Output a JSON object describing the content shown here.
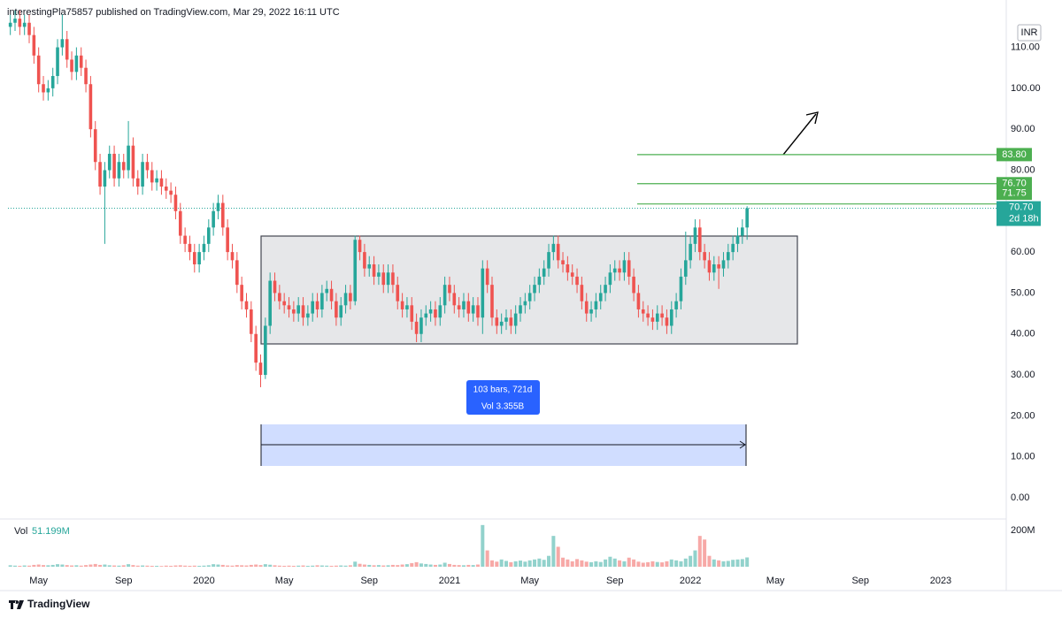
{
  "header": {
    "text": "interestingPla75857 published on TradingView.com, Mar 29, 2022 16:11 UTC"
  },
  "footer": {
    "brand": "TradingView"
  },
  "chart_data": {
    "type": "candlestick",
    "currency": "INR",
    "categories": [
      null,
      null,
      null,
      null,
      null,
      null,
      "May",
      null,
      null,
      null,
      null,
      null,
      null,
      null,
      null,
      null,
      null,
      null,
      null,
      null,
      null,
      null,
      null,
      null,
      "Sep",
      null,
      null,
      null,
      null,
      null,
      null,
      null,
      null,
      null,
      null,
      null,
      null,
      null,
      null,
      null,
      null,
      "2020",
      null,
      null,
      null,
      null,
      null,
      null,
      null,
      null,
      null,
      null,
      null,
      null,
      null,
      null,
      null,
      null,
      "May",
      null,
      null,
      null,
      null,
      null,
      null,
      null,
      null,
      null,
      null,
      null,
      null,
      null,
      null,
      null,
      null,
      null,
      "Sep",
      null,
      null,
      null,
      null,
      null,
      null,
      null,
      null,
      null,
      null,
      null,
      null,
      null,
      null,
      null,
      null,
      "2021",
      null,
      null,
      null,
      null,
      null,
      null,
      null,
      null,
      null,
      null,
      null,
      null,
      null,
      null,
      null,
      null,
      "May",
      null,
      null,
      null,
      null,
      null,
      null,
      null,
      null,
      null,
      null,
      null,
      null,
      null,
      null,
      null,
      null,
      null,
      "Sep",
      null,
      null,
      null,
      null,
      null,
      null,
      null,
      null,
      null,
      null,
      null,
      null,
      null,
      null,
      null,
      "2022",
      null,
      null,
      null,
      null,
      null,
      null,
      null,
      null,
      null,
      null,
      null,
      null,
      null,
      null,
      null,
      null,
      null,
      "May",
      null,
      null,
      null,
      null,
      null,
      null,
      null,
      null,
      null,
      null,
      null,
      null,
      null,
      null,
      null,
      null,
      null,
      "Sep",
      null,
      null,
      null,
      null,
      null,
      null,
      null,
      null,
      null,
      null,
      null,
      null,
      null,
      null,
      null,
      null,
      "2023",
      null,
      null,
      null,
      null,
      null,
      null,
      null,
      null,
      null,
      null,
      null,
      null,
      null
    ],
    "open": [
      115,
      116,
      117,
      115,
      116,
      113,
      108,
      101,
      99,
      100,
      103,
      110,
      112,
      107,
      104,
      108,
      105,
      101,
      90,
      82,
      76,
      80,
      84,
      78,
      82,
      80,
      86,
      78,
      76,
      82,
      80,
      77,
      78,
      76,
      75,
      74,
      70,
      64,
      62,
      60,
      57,
      60,
      62,
      66,
      70,
      72,
      66,
      60,
      58,
      52,
      48,
      46,
      40,
      33,
      30,
      42,
      53,
      50,
      48,
      47,
      46,
      45,
      47,
      44,
      45,
      48,
      46,
      50,
      51,
      48,
      44,
      47,
      50,
      48,
      63,
      60,
      56,
      57,
      54,
      55,
      52,
      55,
      52,
      48,
      46,
      47,
      43,
      40,
      44,
      45,
      46,
      44,
      47,
      52,
      50,
      47,
      46,
      48,
      45,
      47,
      44,
      56,
      52,
      44,
      42,
      43,
      44,
      42,
      45,
      47,
      48,
      50,
      52,
      54,
      56,
      60,
      62,
      58,
      57,
      55,
      54,
      52,
      48,
      45,
      46,
      48,
      50,
      52,
      55,
      56,
      55,
      58,
      54,
      50,
      46,
      45,
      44,
      43,
      45,
      44,
      42,
      46,
      48,
      54,
      58,
      62,
      66,
      60,
      58,
      55,
      57,
      56,
      58,
      60,
      62,
      64,
      66,
      null,
      null,
      null,
      null,
      null,
      null,
      null,
      null,
      null,
      null,
      null,
      null,
      null,
      null,
      null,
      null,
      null,
      null,
      null,
      null,
      null,
      null,
      null,
      null,
      null,
      null,
      null,
      null,
      null,
      null,
      null,
      null,
      null,
      null,
      null,
      null,
      null,
      null,
      null,
      null,
      null,
      null,
      null,
      null,
      null,
      null,
      null,
      null,
      null,
      null,
      null,
      null,
      null,
      null
    ],
    "high": [
      118,
      119,
      119,
      118,
      118,
      115,
      110,
      103,
      102,
      105,
      112,
      118,
      114,
      109,
      110,
      110,
      107,
      103,
      92,
      84,
      82,
      86,
      86,
      84,
      84,
      92,
      88,
      80,
      84,
      84,
      82,
      80,
      80,
      78,
      77,
      76,
      72,
      66,
      64,
      62,
      62,
      64,
      68,
      72,
      74,
      74,
      68,
      62,
      60,
      54,
      50,
      48,
      42,
      35,
      44,
      55,
      55,
      52,
      50,
      49,
      48,
      49,
      49,
      47,
      50,
      50,
      52,
      53,
      53,
      50,
      49,
      52,
      52,
      64,
      64,
      62,
      59,
      59,
      57,
      57,
      57,
      57,
      54,
      50,
      49,
      49,
      45,
      46,
      47,
      48,
      48,
      49,
      54,
      54,
      52,
      49,
      50,
      50,
      49,
      49,
      58,
      58,
      54,
      46,
      45,
      46,
      46,
      47,
      49,
      50,
      52,
      54,
      56,
      58,
      62,
      64,
      64,
      60,
      59,
      57,
      56,
      54,
      50,
      48,
      50,
      52,
      54,
      57,
      58,
      58,
      60,
      60,
      56,
      52,
      48,
      47,
      46,
      47,
      47,
      46,
      48,
      50,
      56,
      65,
      64,
      68,
      68,
      62,
      60,
      59,
      59,
      60,
      62,
      64,
      66,
      68,
      71.2,
      null,
      null,
      null,
      null,
      null,
      null,
      null,
      null,
      null,
      null,
      null,
      null,
      null,
      null,
      null,
      null,
      null,
      null,
      null,
      null,
      null,
      null,
      null,
      null,
      null,
      null,
      null,
      null,
      null,
      null,
      null,
      null,
      null,
      null,
      null,
      null,
      null,
      null,
      null,
      null,
      null,
      null,
      null,
      null,
      null,
      null,
      null,
      null,
      null,
      null,
      null,
      null,
      null,
      null
    ],
    "low": [
      113,
      114,
      113,
      113,
      111,
      106,
      99,
      97,
      97,
      98,
      101,
      108,
      105,
      102,
      102,
      103,
      99,
      88,
      80,
      74,
      62,
      78,
      76,
      76,
      78,
      78,
      76,
      74,
      74,
      78,
      75,
      75,
      74,
      73,
      72,
      68,
      62,
      60,
      58,
      55,
      55,
      58,
      60,
      64,
      68,
      64,
      58,
      56,
      50,
      46,
      44,
      38,
      31,
      27,
      29,
      40,
      48,
      46,
      45,
      44,
      43,
      43,
      42,
      42,
      43,
      44,
      44,
      48,
      46,
      42,
      42,
      45,
      46,
      47,
      58,
      54,
      54,
      52,
      52,
      50,
      50,
      50,
      46,
      44,
      44,
      41,
      38,
      38,
      42,
      43,
      42,
      42,
      45,
      48,
      45,
      44,
      44,
      43,
      43,
      42,
      40,
      50,
      42,
      40,
      40,
      41,
      40,
      40,
      43,
      45,
      46,
      48,
      50,
      52,
      54,
      58,
      56,
      55,
      53,
      52,
      50,
      46,
      43,
      43,
      44,
      46,
      48,
      50,
      53,
      53,
      53,
      52,
      48,
      44,
      43,
      42,
      41,
      41,
      42,
      40,
      40,
      44,
      46,
      52,
      56,
      60,
      58,
      56,
      53,
      53,
      51,
      54,
      56,
      58,
      60,
      62,
      63,
      null,
      null,
      null,
      null,
      null,
      null,
      null,
      null,
      null,
      null,
      null,
      null,
      null,
      null,
      null,
      null,
      null,
      null,
      null,
      null,
      null,
      null,
      null,
      null,
      null,
      null,
      null,
      null,
      null,
      null,
      null,
      null,
      null,
      null,
      null,
      null,
      null,
      null,
      null,
      null,
      null,
      null,
      null,
      null,
      null,
      null,
      null,
      null,
      null,
      null,
      null,
      null,
      null,
      null
    ],
    "close": [
      116,
      117,
      115,
      116,
      113,
      108,
      101,
      99,
      100,
      103,
      110,
      112,
      107,
      104,
      108,
      105,
      101,
      90,
      82,
      76,
      80,
      84,
      78,
      82,
      80,
      86,
      78,
      76,
      82,
      80,
      77,
      78,
      76,
      75,
      74,
      70,
      64,
      62,
      60,
      57,
      60,
      62,
      66,
      70,
      72,
      66,
      60,
      58,
      52,
      48,
      46,
      40,
      33,
      30,
      42,
      53,
      50,
      48,
      47,
      46,
      45,
      47,
      44,
      45,
      48,
      46,
      50,
      51,
      48,
      44,
      47,
      50,
      48,
      63,
      60,
      56,
      57,
      54,
      55,
      52,
      55,
      52,
      48,
      46,
      47,
      43,
      40,
      44,
      45,
      46,
      44,
      47,
      52,
      50,
      47,
      46,
      48,
      45,
      47,
      44,
      56,
      52,
      44,
      42,
      43,
      44,
      42,
      45,
      47,
      48,
      50,
      52,
      54,
      56,
      60,
      62,
      58,
      57,
      55,
      54,
      52,
      48,
      45,
      46,
      48,
      50,
      52,
      55,
      56,
      55,
      58,
      54,
      50,
      46,
      45,
      44,
      43,
      45,
      44,
      42,
      46,
      48,
      54,
      58,
      62,
      66,
      60,
      58,
      55,
      57,
      56,
      58,
      60,
      62,
      64,
      66,
      70.7,
      null,
      null,
      null,
      null,
      null,
      null,
      null,
      null,
      null,
      null,
      null,
      null,
      null,
      null,
      null,
      null,
      null,
      null,
      null,
      null,
      null,
      null,
      null,
      null,
      null,
      null,
      null,
      null,
      null,
      null,
      null,
      null,
      null,
      null,
      null,
      null,
      null,
      null,
      null,
      null,
      null,
      null,
      null,
      null,
      null,
      null,
      null,
      null,
      null,
      null,
      null,
      null,
      null,
      null
    ],
    "volume": [
      8,
      6,
      5,
      7,
      6,
      10,
      12,
      9,
      8,
      10,
      14,
      12,
      9,
      7,
      8,
      6,
      9,
      12,
      15,
      10,
      12,
      8,
      7,
      6,
      8,
      14,
      9,
      6,
      7,
      6,
      5,
      5,
      4,
      6,
      5,
      7,
      8,
      6,
      5,
      6,
      5,
      6,
      8,
      14,
      12,
      10,
      7,
      6,
      9,
      8,
      7,
      10,
      12,
      9,
      14,
      11,
      8,
      6,
      5,
      6,
      5,
      6,
      7,
      5,
      6,
      8,
      7,
      6,
      5,
      6,
      7,
      6,
      8,
      28,
      16,
      12,
      10,
      8,
      9,
      7,
      8,
      10,
      9,
      12,
      14,
      20,
      25,
      18,
      15,
      12,
      10,
      12,
      22,
      15,
      10,
      9,
      8,
      10,
      9,
      12,
      230,
      90,
      35,
      28,
      40,
      32,
      25,
      30,
      34,
      28,
      35,
      40,
      45,
      38,
      60,
      170,
      110,
      50,
      40,
      30,
      42,
      35,
      28,
      25,
      30,
      26,
      40,
      55,
      45,
      35,
      30,
      50,
      40,
      28,
      22,
      25,
      30,
      26,
      24,
      30,
      40,
      35,
      30,
      45,
      60,
      90,
      170,
      150,
      60,
      40,
      35,
      30,
      32,
      38,
      40,
      42,
      51.199,
      null,
      null,
      null,
      null,
      null,
      null,
      null,
      null,
      null,
      null,
      null,
      null,
      null,
      null,
      null,
      null,
      null,
      null,
      null,
      null,
      null,
      null,
      null,
      null,
      null,
      null,
      null,
      null,
      null,
      null,
      null,
      null,
      null,
      null,
      null,
      null,
      null,
      null,
      null,
      null,
      null,
      null,
      null,
      null,
      null,
      null,
      null,
      null,
      null,
      null,
      null,
      null,
      null,
      null
    ],
    "volume_legend": {
      "name": "Vol",
      "label": "51.199M"
    },
    "up_color": "#26a69a",
    "down_color": "#ef5350",
    "level_color": "#4caf50",
    "ylim": [
      -4.75,
      119.4
    ],
    "yticks": [
      {
        "value": 0,
        "label": "0.00"
      },
      {
        "value": 10,
        "label": "10.00"
      },
      {
        "value": 20,
        "label": "20.00"
      },
      {
        "value": 30,
        "label": "30.00"
      },
      {
        "value": 40,
        "label": "40.00"
      },
      {
        "value": 50,
        "label": "50.00"
      },
      {
        "value": 60,
        "label": "60.00"
      },
      {
        "value": 70,
        "label": "70.00"
      },
      {
        "value": 80,
        "label": "80.00"
      },
      {
        "value": 90,
        "label": "90.00"
      },
      {
        "value": 100,
        "label": "100.00"
      },
      {
        "value": 110,
        "label": "110.00"
      }
    ],
    "y2lim": [
      0,
      258.5
    ],
    "y2ticks": [
      {
        "value": 200,
        "label": "200M"
      }
    ],
    "grid": false,
    "levels": [
      {
        "value": 83.8,
        "label": "83.80"
      },
      {
        "value": 76.7,
        "label": "76.70"
      },
      {
        "value": 71.75,
        "label": "71.75"
      }
    ],
    "last_price": {
      "value": 70.7,
      "label": "70.70",
      "countdown": "2d 18h"
    },
    "range": {
      "bars": "103 bars, 721d",
      "volume": "Vol 3.355B"
    }
  }
}
